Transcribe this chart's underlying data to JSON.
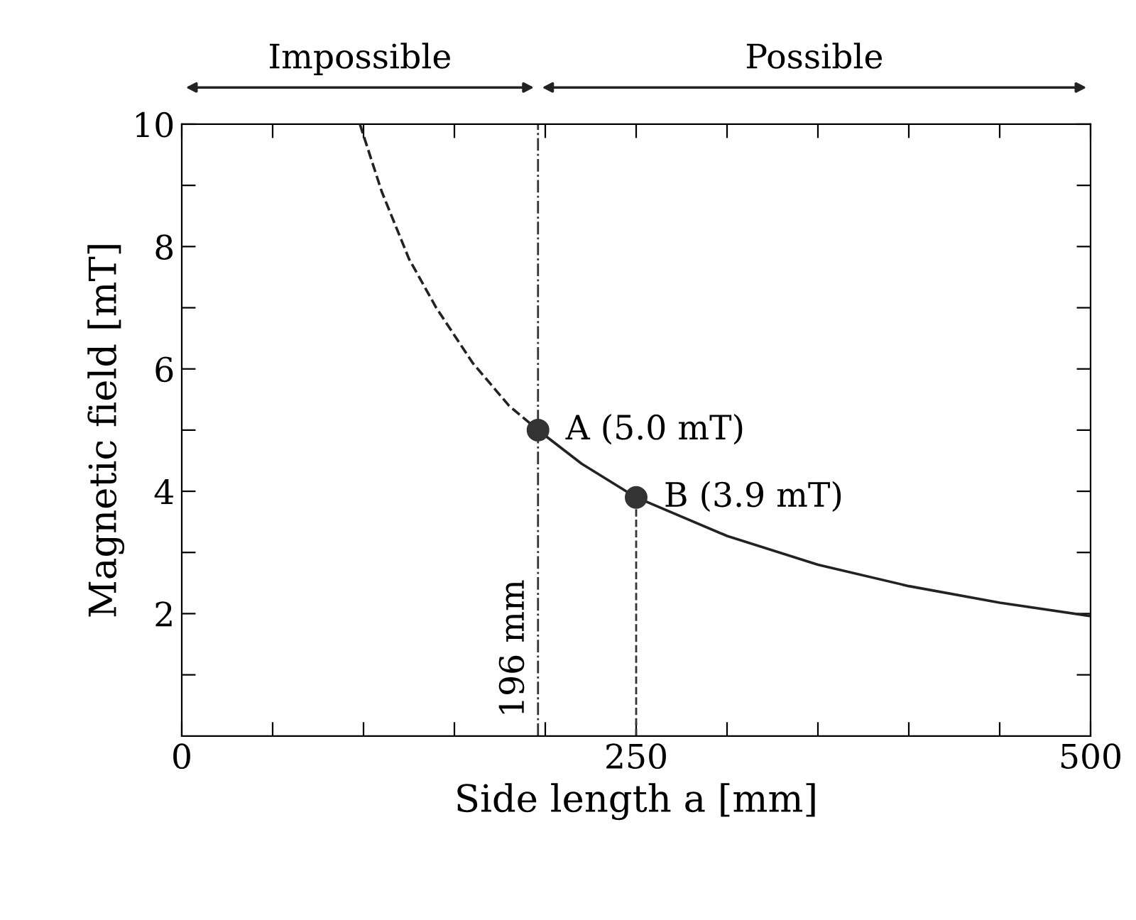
{
  "chart_data": {
    "type": "line",
    "xlabel": "Side length a [mm]",
    "ylabel": "Magnetic field [mT]",
    "xlim": [
      0,
      500
    ],
    "ylim": [
      0,
      10
    ],
    "xticks": [
      0,
      {
        "value": 50,
        "label": null
      },
      {
        "value": 100,
        "label": null
      },
      {
        "value": 150,
        "label": null
      },
      {
        "value": 200,
        "label": null
      },
      250,
      {
        "value": 300,
        "label": null
      },
      {
        "value": 350,
        "label": null
      },
      {
        "value": 400,
        "label": null
      },
      {
        "value": 450,
        "label": null
      },
      500
    ],
    "yticks": [
      {
        "value": 1,
        "label": null
      },
      2,
      {
        "value": 3,
        "label": null
      },
      4,
      {
        "value": 5,
        "label": null
      },
      6,
      {
        "value": 7,
        "label": null
      },
      8,
      {
        "value": 9,
        "label": null
      },
      10
    ],
    "grid": false,
    "series": [
      {
        "color": "#222222",
        "line_style": "dashed",
        "x": [
          98,
          110,
          125,
          140,
          160,
          180,
          196
        ],
        "values": [
          10,
          8.9,
          7.8,
          7.0,
          6.1,
          5.4,
          5.0
        ]
      },
      {
        "color": "#222222",
        "line_style": "solid",
        "x": [
          196,
          220,
          250,
          300,
          350,
          400,
          450,
          500
        ],
        "values": [
          5.0,
          4.45,
          3.9,
          3.27,
          2.8,
          2.45,
          2.18,
          1.96
        ]
      },
      {
        "type": "scatter",
        "color": "#333333",
        "marker": "circle",
        "x": [
          196,
          250
        ],
        "values": [
          5.0,
          3.9
        ]
      }
    ],
    "ref_lines": [
      {
        "axis": "x",
        "value": 196,
        "label": "196 mm",
        "line_style": "dashdot",
        "color": "#333333"
      },
      {
        "axis": "x",
        "value": 250,
        "label": null,
        "line_style": "dashed",
        "color": "#333333"
      }
    ],
    "annotations": [
      {
        "text": "A (5.0 mT)",
        "x": 196,
        "y": 5.0
      },
      {
        "text": "B (3.9 mT)",
        "x": 250,
        "y": 3.9
      },
      "Impossible",
      "Possible"
    ]
  }
}
